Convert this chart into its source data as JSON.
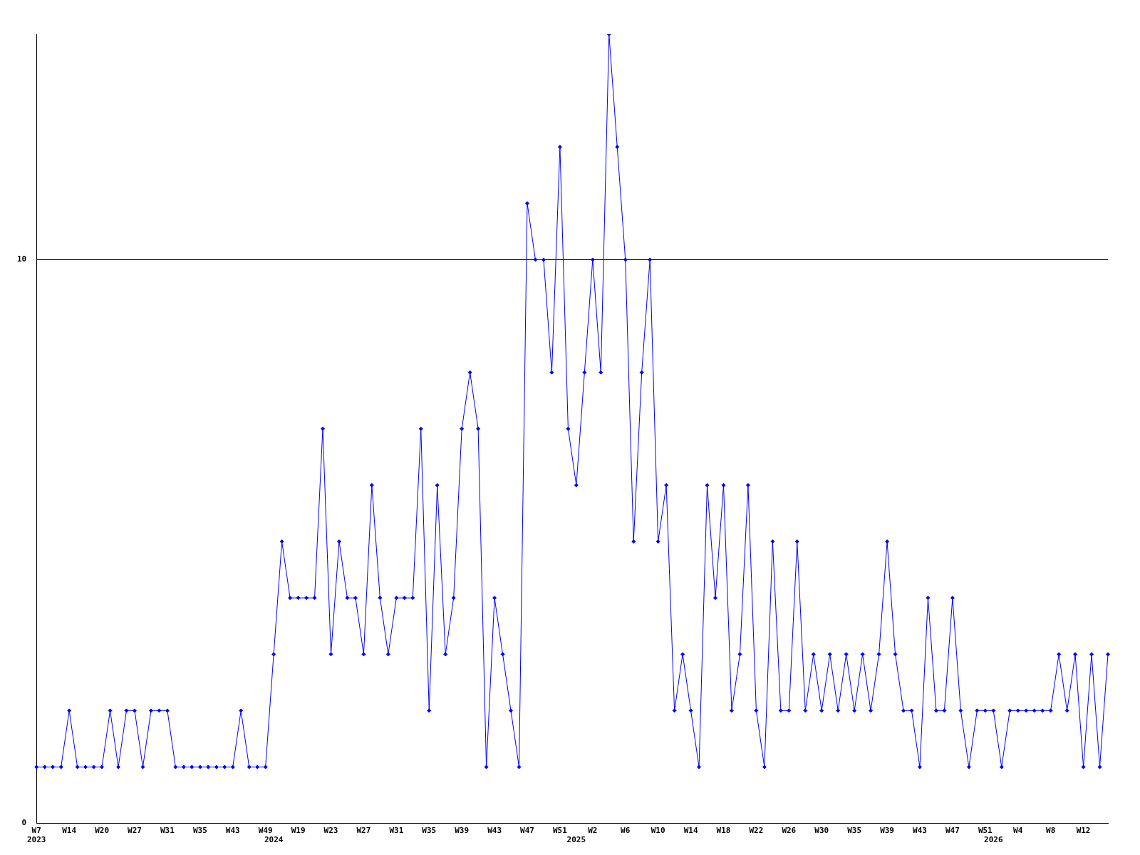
{
  "chart_data": {
    "type": "line",
    "categories": [
      "W7\n2023",
      null,
      null,
      null,
      "W14",
      null,
      null,
      null,
      "W20",
      null,
      null,
      null,
      "W27",
      null,
      null,
      null,
      "W31",
      null,
      null,
      null,
      "W35",
      null,
      null,
      null,
      "W43",
      null,
      null,
      null,
      "W49",
      "\n2024",
      null,
      null,
      "W19",
      null,
      null,
      null,
      "W23",
      null,
      null,
      null,
      "W27",
      null,
      null,
      null,
      "W31",
      null,
      null,
      null,
      "W35",
      null,
      null,
      null,
      "W39",
      null,
      null,
      null,
      "W43",
      null,
      null,
      null,
      "W47",
      null,
      null,
      null,
      "W51",
      null,
      "\n2025",
      null,
      "W2",
      null,
      null,
      null,
      "W6",
      null,
      null,
      null,
      "W10",
      null,
      null,
      null,
      "W14",
      null,
      null,
      null,
      "W18",
      null,
      null,
      null,
      "W22",
      null,
      null,
      null,
      "W26",
      null,
      null,
      null,
      "W30",
      null,
      null,
      null,
      "W35",
      null,
      null,
      null,
      "W39",
      null,
      null,
      null,
      "W43",
      null,
      null,
      null,
      "W47",
      null,
      null,
      null,
      "W51",
      "\n2026",
      null,
      null,
      "W4",
      null,
      null,
      null,
      "W8",
      null,
      null,
      null,
      "W12",
      null,
      null,
      null
    ],
    "series": [
      {
        "color": "#0000ff",
        "values": [
          1,
          1,
          1,
          1,
          2,
          1,
          1,
          1,
          1,
          2,
          1,
          2,
          2,
          1,
          2,
          2,
          2,
          1,
          1,
          1,
          1,
          1,
          1,
          1,
          1,
          2,
          1,
          1,
          1,
          3,
          5,
          4,
          4,
          4,
          4,
          7,
          3,
          5,
          4,
          4,
          3,
          6,
          4,
          3,
          4,
          4,
          4,
          7,
          2,
          6,
          3,
          4,
          7,
          8,
          7,
          1,
          4,
          3,
          2,
          1,
          11,
          10,
          10,
          8,
          12,
          7,
          6,
          8,
          10,
          8,
          14,
          12,
          10,
          5,
          8,
          10,
          5,
          6,
          2,
          3,
          2,
          1,
          6,
          4,
          6,
          2,
          3,
          6,
          2,
          1,
          5,
          2,
          2,
          5,
          2,
          3,
          2,
          3,
          2,
          3,
          2,
          3,
          2,
          3,
          5,
          3,
          2,
          2,
          1,
          4,
          2,
          2,
          4,
          2,
          1,
          2,
          2,
          2,
          1,
          2,
          2,
          2,
          2,
          2,
          2,
          3,
          2,
          3,
          1,
          3,
          1,
          3
        ]
      }
    ],
    "ylim": [
      0,
      14
    ],
    "yticks": [
      0,
      10
    ],
    "grid": "y",
    "marker": "diamond",
    "legend": false
  }
}
